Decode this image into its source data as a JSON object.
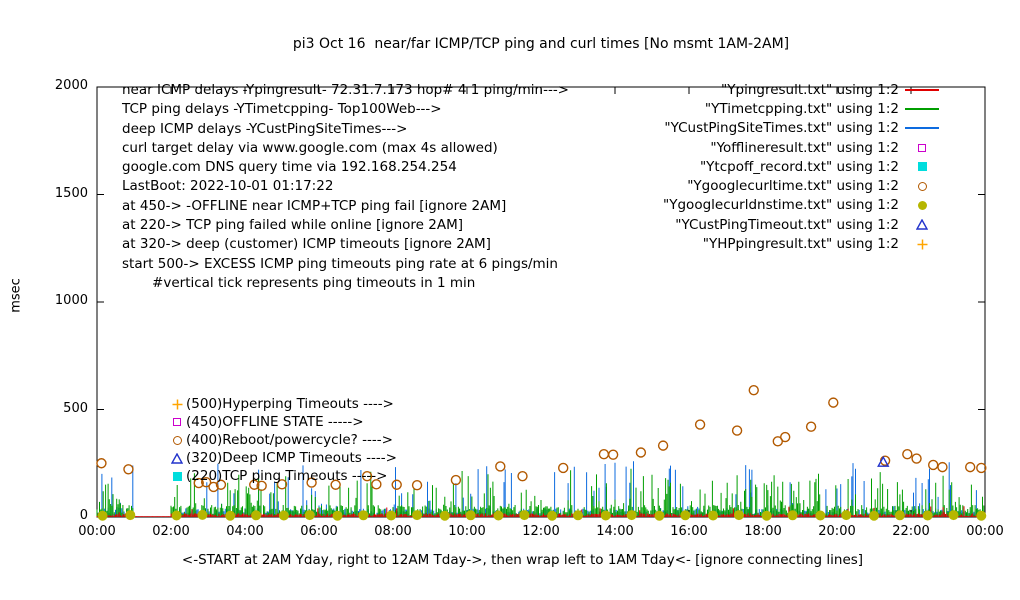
{
  "title": "pi3 Oct 16  near/far ICMP/TCP ping and curl times [No msmt 1AM-2AM]",
  "axes": {
    "ylabel": "msec",
    "xlabel": "<-START at 2AM Yday, right to 12AM Tday->, then wrap left to 1AM Tday<- [ignore connecting lines]",
    "y_ticks": [
      "0",
      "500",
      "1000",
      "1500",
      "2000"
    ],
    "x_ticks": [
      "00:00",
      "02:00",
      "04:00",
      "06:00",
      "08:00",
      "10:00",
      "12:00",
      "14:00",
      "16:00",
      "18:00",
      "20:00",
      "22:00",
      "00:00"
    ]
  },
  "info_block": {
    "lines": [
      "near ICMP delays -Ypingresult- 72.31.7.173 hop# 4 1 ping/min--->",
      "TCP ping delays -YTimetcpping- Top100Web--->",
      "deep ICMP delays -YCustPingSiteTimes--->",
      "curl target delay via www.google.com (max 4s allowed)",
      "google.com DNS query time via 192.168.254.254",
      "LastBoot: 2022-10-01 01:17:22",
      "at 450-> -OFFLINE near ICMP+TCP ping fail [ignore 2AM]",
      "at 220-> TCP ping failed while online [ignore 2AM]",
      "at 320-> deep (customer) ICMP timeouts [ignore 2AM]",
      "start 500-> EXCESS ICMP ping timeouts ping rate at 6 pings/min",
      "       #vertical tick represents ping timeouts in 1 min"
    ]
  },
  "legend": {
    "entries": [
      {
        "label": "\"Ypingresult.txt\" using 1:2",
        "marker": "line",
        "color": "#e00000"
      },
      {
        "label": "\"YTimetcpping.txt\" using 1:2",
        "marker": "line",
        "color": "#009e00"
      },
      {
        "label": "\"YCustPingSiteTimes.txt\" using 1:2",
        "marker": "line",
        "color": "#0d6bdf"
      },
      {
        "label": "\"Yofflineresult.txt\" using 1:2",
        "marker": "open-square",
        "color": "#cc00cc"
      },
      {
        "label": "\"Ytcpoff_record.txt\" using 1:2",
        "marker": "filled-square",
        "color": "#00dddd"
      },
      {
        "label": "\"Ygooglecurltime.txt\" using 1:2",
        "marker": "open-circle",
        "color": "#b25900"
      },
      {
        "label": "\"Ygooglecurldnstime.txt\" using 1:2",
        "marker": "filled-circle",
        "color": "#b6b600"
      },
      {
        "label": "\"YCustPingTimeout.txt\" using 1:2",
        "marker": "open-triangle",
        "color": "#2233cc"
      },
      {
        "label": "\"YHPpingresult.txt\" using 1:2",
        "marker": "plus",
        "color": "#ffa500"
      }
    ]
  },
  "threshold_labels": [
    {
      "marker": "plus",
      "color": "#ffa500",
      "value": 500,
      "label": "(500)Hyperping Timeouts ---->"
    },
    {
      "marker": "open-square",
      "color": "#cc00cc",
      "value": 450,
      "label": "(450)OFFLINE STATE ----->"
    },
    {
      "marker": "open-circle",
      "color": "#b25900",
      "value": 400,
      "label": "(400)Reboot/powercycle? ---->"
    },
    {
      "marker": "open-triangle",
      "color": "#2233cc",
      "value": 320,
      "label": "(320)Deep ICMP Timeouts ---->"
    },
    {
      "marker": "filled-square",
      "color": "#00dddd",
      "value": 220,
      "label": "(220)TCP ping Timeouts ----->"
    }
  ],
  "chart_data": {
    "type": "line",
    "title": "pi3 Oct 16  near/far ICMP/TCP ping and curl times [No msmt 1AM-2AM]",
    "xlabel": "<-START at 2AM Yday, right to 12AM Tday->, then wrap left to 1AM Tday<- [ignore connecting lines]",
    "ylabel": "msec",
    "ylim": [
      0,
      2000
    ],
    "x_range_hours": [
      0,
      24
    ],
    "grid": false,
    "legend_position": "inside-top-right",
    "no_measurement_gap_hours": [
      1,
      2
    ],
    "impulse_series": [
      {
        "name": "deep ICMP delays",
        "file": "YCustPingSiteTimes.txt",
        "color": "#0d6bdf",
        "base": 6,
        "jitter": 34,
        "spike_chance": 0.14,
        "spike_extra": 225,
        "seed": 29,
        "early_boost_until_hour": 0.9,
        "early_boost": 1.25,
        "draws_in_gap": false
      },
      {
        "name": "TCP ping delays",
        "file": "YTimetcpping.txt",
        "color": "#009e00",
        "base": 8,
        "jitter": 48,
        "spike_chance": 0.26,
        "spike_extra": 175,
        "seed": 13,
        "early_boost_until_hour": 0,
        "early_boost": 1,
        "draws_in_gap": false
      },
      {
        "name": "near ICMP delays",
        "file": "Ypingresult.txt",
        "color": "#e00000",
        "base": 4,
        "jitter": 13,
        "spike_chance": 0.05,
        "spike_extra": 38,
        "seed": 7,
        "early_boost_until_hour": 0,
        "early_boost": 1,
        "draws_in_gap": true
      }
    ],
    "scatter_series": [
      {
        "name": "google curl time",
        "file": "Ygooglecurltime.txt",
        "marker": "open-circle",
        "color": "#b25900",
        "points": [
          [
            0.12,
            250
          ],
          [
            0.85,
            222
          ],
          [
            2.75,
            158
          ],
          [
            2.95,
            162
          ],
          [
            3.15,
            140
          ],
          [
            3.35,
            150
          ],
          [
            4.25,
            150
          ],
          [
            4.45,
            145
          ],
          [
            5.0,
            152
          ],
          [
            5.8,
            160
          ],
          [
            6.45,
            150
          ],
          [
            7.3,
            190
          ],
          [
            7.55,
            152
          ],
          [
            8.1,
            150
          ],
          [
            8.65,
            148
          ],
          [
            9.7,
            172
          ],
          [
            10.9,
            235
          ],
          [
            11.5,
            190
          ],
          [
            12.6,
            228
          ],
          [
            13.7,
            292
          ],
          [
            13.95,
            290
          ],
          [
            14.7,
            300
          ],
          [
            15.3,
            332
          ],
          [
            16.3,
            430
          ],
          [
            17.3,
            402
          ],
          [
            17.75,
            590
          ],
          [
            18.4,
            352
          ],
          [
            18.6,
            372
          ],
          [
            19.3,
            420
          ],
          [
            19.9,
            532
          ],
          [
            21.3,
            262
          ],
          [
            21.9,
            292
          ],
          [
            22.15,
            272
          ],
          [
            22.6,
            242
          ],
          [
            22.85,
            232
          ],
          [
            23.6,
            232
          ],
          [
            23.9,
            228
          ]
        ]
      },
      {
        "name": "google DNS query time",
        "file": "Ygooglecurldnstime.txt",
        "marker": "filled-circle",
        "color": "#b6b600",
        "points": [
          [
            0.15,
            6
          ],
          [
            0.9,
            9
          ],
          [
            2.15,
            7
          ],
          [
            2.85,
            10
          ],
          [
            3.6,
            6
          ],
          [
            4.3,
            8
          ],
          [
            5.05,
            7
          ],
          [
            5.75,
            9
          ],
          [
            6.5,
            6
          ],
          [
            7.2,
            8
          ],
          [
            7.95,
            7
          ],
          [
            8.65,
            9
          ],
          [
            9.4,
            6
          ],
          [
            10.1,
            8
          ],
          [
            10.85,
            7
          ],
          [
            11.55,
            9
          ],
          [
            12.3,
            6
          ],
          [
            13.0,
            8
          ],
          [
            13.75,
            7
          ],
          [
            14.45,
            9
          ],
          [
            15.2,
            6
          ],
          [
            15.9,
            8
          ],
          [
            16.65,
            7
          ],
          [
            17.35,
            9
          ],
          [
            18.1,
            6
          ],
          [
            18.8,
            8
          ],
          [
            19.55,
            7
          ],
          [
            20.25,
            9
          ],
          [
            21.0,
            6
          ],
          [
            21.7,
            8
          ],
          [
            22.45,
            7
          ],
          [
            23.15,
            9
          ],
          [
            23.9,
            6
          ]
        ]
      },
      {
        "name": "offline state",
        "file": "Yofflineresult.txt",
        "marker": "open-square",
        "color": "#cc00cc",
        "points": []
      },
      {
        "name": "tcp offline record",
        "file": "Ytcpoff_record.txt",
        "marker": "filled-square",
        "color": "#00dddd",
        "points": []
      },
      {
        "name": "customer ping timeout",
        "file": "YCustPingTimeout.txt",
        "marker": "open-triangle",
        "color": "#2233cc",
        "points": [
          [
            21.25,
            255
          ]
        ]
      },
      {
        "name": "HP ping result",
        "file": "YHPpingresult.txt",
        "marker": "plus",
        "color": "#ffa500",
        "points": []
      }
    ]
  }
}
